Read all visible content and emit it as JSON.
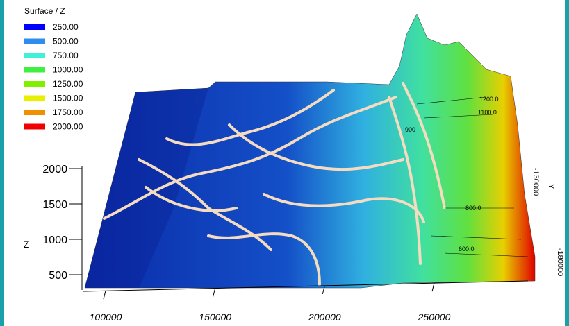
{
  "chart_data": {
    "type": "surface",
    "title": "Surface / Z",
    "zlabel": "Z",
    "ylabel": "Y",
    "levels": [
      {
        "value": 250,
        "label": "250.00",
        "color": "#0000ff"
      },
      {
        "value": 500,
        "label": "500.00",
        "color": "#2e8ef0"
      },
      {
        "value": 750,
        "label": "750.00",
        "color": "#40f0d8"
      },
      {
        "value": 1000,
        "label": "1000.00",
        "color": "#40f040"
      },
      {
        "value": 1250,
        "label": "1250.00",
        "color": "#80f000"
      },
      {
        "value": 1500,
        "label": "1500.00",
        "color": "#e8f000"
      },
      {
        "value": 1750,
        "label": "1750.00",
        "color": "#f09000"
      },
      {
        "value": 2000,
        "label": "2000.00",
        "color": "#f00000"
      }
    ],
    "zlim": [
      500,
      2000
    ],
    "zticks": [
      500,
      1000,
      1500,
      2000
    ],
    "xlim": [
      100000,
      250000
    ],
    "xticks": [
      100000,
      150000,
      200000,
      250000
    ],
    "yticks": [
      -130000,
      -180000
    ],
    "annotations": [
      "800.0",
      "600.0",
      "900",
      "1200.0",
      "1100.0"
    ]
  }
}
